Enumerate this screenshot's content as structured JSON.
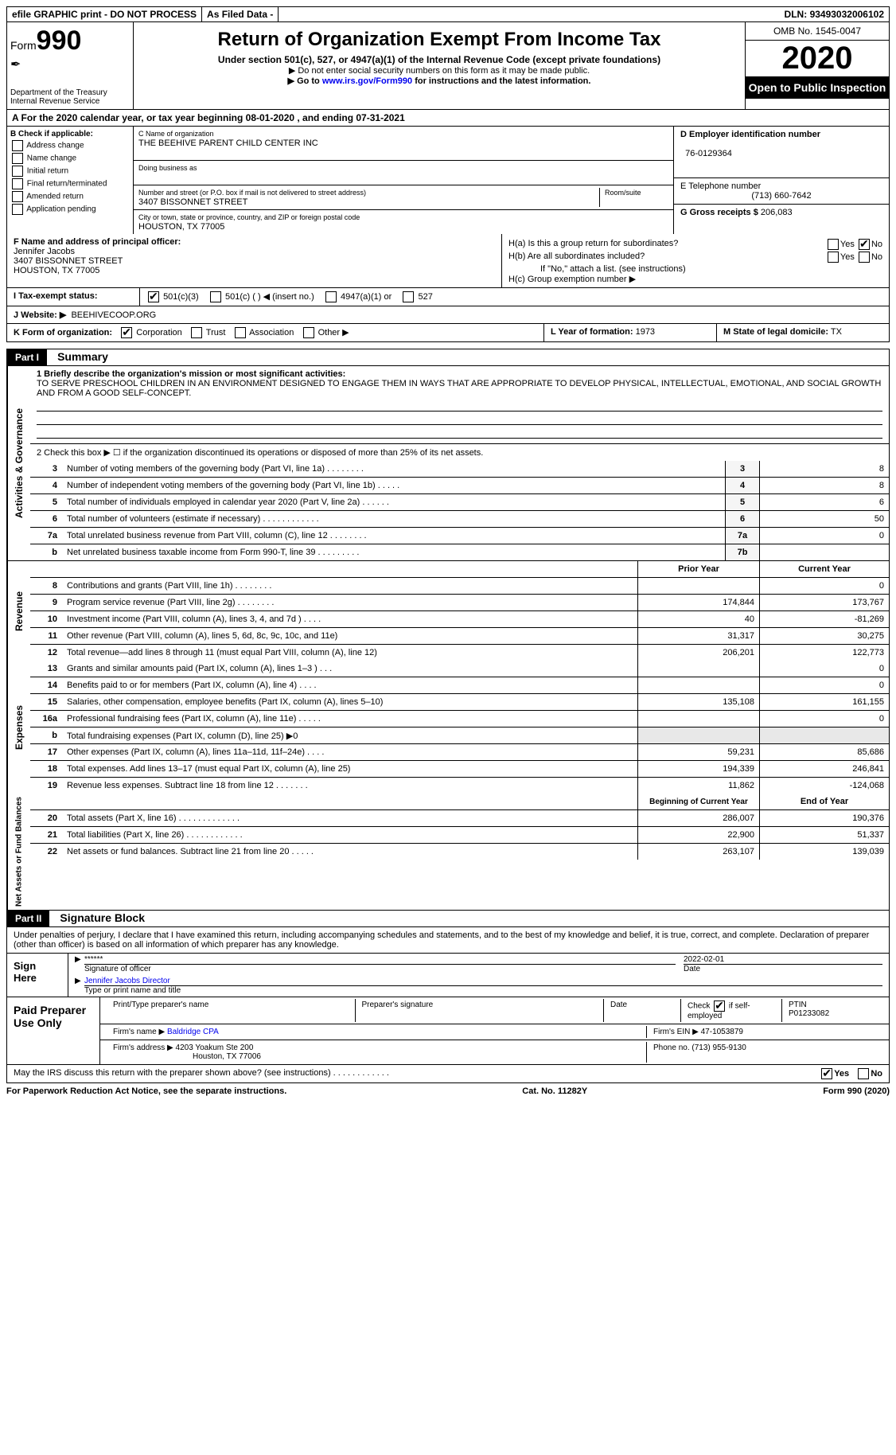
{
  "topbar": {
    "efile": "efile GRAPHIC print - DO NOT PROCESS",
    "asfiled": "As Filed Data -",
    "dln_label": "DLN:",
    "dln": "93493032006102"
  },
  "header": {
    "form_label": "Form",
    "form_num": "990",
    "dept": "Department of the Treasury\nInternal Revenue Service",
    "title": "Return of Organization Exempt From Income Tax",
    "sub": "Under section 501(c), 527, or 4947(a)(1) of the Internal Revenue Code (except private foundations)",
    "note1": "▶ Do not enter social security numbers on this form as it may be made public.",
    "note2_pre": "▶ Go to ",
    "note2_link": "www.irs.gov/Form990",
    "note2_post": " for instructions and the latest information.",
    "omb": "OMB No. 1545-0047",
    "year": "2020",
    "open": "Open to Public Inspection"
  },
  "rowA": "A   For the 2020 calendar year, or tax year beginning 08-01-2020   , and ending 07-31-2021",
  "B": {
    "label": "B Check if applicable:",
    "items": [
      "Address change",
      "Name change",
      "Initial return",
      "Final return/terminated",
      "Amended return",
      "Application pending"
    ]
  },
  "C": {
    "name_label": "C Name of organization",
    "name": "THE BEEHIVE PARENT CHILD CENTER INC",
    "dba_label": "Doing business as",
    "dba": "",
    "street_label": "Number and street (or P.O. box if mail is not delivered to street address)",
    "room_label": "Room/suite",
    "street": "3407 BISSONNET STREET",
    "city_label": "City or town, state or province, country, and ZIP or foreign postal code",
    "city": "HOUSTON, TX  77005"
  },
  "D": {
    "label": "D Employer identification number",
    "val": "76-0129364"
  },
  "E": {
    "label": "E Telephone number",
    "val": "(713) 660-7642"
  },
  "G": {
    "label": "G Gross receipts $",
    "val": "206,083"
  },
  "F": {
    "label": "F  Name and address of principal officer:",
    "name": "Jennifer Jacobs",
    "street": "3407 BISSONNET STREET",
    "city": "HOUSTON, TX  77005"
  },
  "H": {
    "a": "H(a)  Is this a group return for subordinates?",
    "b": "H(b)  Are all subordinates included?",
    "bno": "If \"No,\" attach a list. (see instructions)",
    "c": "H(c)  Group exemption number ▶",
    "yes": "Yes",
    "no": "No"
  },
  "I": {
    "label": "I   Tax-exempt status:",
    "opts": [
      "501(c)(3)",
      "501(c) (   ) ◀ (insert no.)",
      "4947(a)(1) or",
      "527"
    ]
  },
  "J": {
    "label": "J   Website: ▶",
    "val": "BEEHIVECOOP.ORG"
  },
  "K": {
    "label": "K Form of organization:",
    "opts": [
      "Corporation",
      "Trust",
      "Association",
      "Other ▶"
    ]
  },
  "L": {
    "label": "L Year of formation:",
    "val": "1973"
  },
  "M": {
    "label": "M State of legal domicile:",
    "val": "TX"
  },
  "part1": {
    "hdr": "Part I",
    "title": "Summary",
    "line1_label": "1  Briefly describe the organization's mission or most significant activities:",
    "line1_text": "TO SERVE PRESCHOOL CHILDREN IN AN ENVIRONMENT DESIGNED TO ENGAGE THEM IN WAYS THAT ARE APPROPRIATE TO DEVELOP PHYSICAL, INTELLECTUAL, EMOTIONAL, AND SOCIAL GROWTH AND FROM A GOOD SELF-CONCEPT.",
    "line2": "2   Check this box ▶ ☐ if the organization discontinued its operations or disposed of more than 25% of its net assets.",
    "ag_lines": [
      {
        "n": "3",
        "d": "Number of voting members of the governing body (Part VI, line 1a)   .   .   .   .   .   .   .   .",
        "b": "3",
        "v": "8"
      },
      {
        "n": "4",
        "d": "Number of independent voting members of the governing body (Part VI, line 1b)   .   .   .   .   .",
        "b": "4",
        "v": "8"
      },
      {
        "n": "5",
        "d": "Total number of individuals employed in calendar year 2020 (Part V, line 2a)   .   .   .   .   .   .",
        "b": "5",
        "v": "6"
      },
      {
        "n": "6",
        "d": "Total number of volunteers (estimate if necessary)   .   .   .   .   .   .   .   .   .   .   .   .",
        "b": "6",
        "v": "50"
      },
      {
        "n": "7a",
        "d": "Total unrelated business revenue from Part VIII, column (C), line 12   .   .   .   .   .   .   .   .",
        "b": "7a",
        "v": "0"
      },
      {
        "n": "b",
        "d": "Net unrelated business taxable income from Form 990-T, line 39   .   .   .   .   .   .   .   .   .",
        "b": "7b",
        "v": ""
      }
    ],
    "col_prior": "Prior Year",
    "col_current": "Current Year",
    "rev_lines": [
      {
        "n": "8",
        "d": "Contributions and grants (Part VIII, line 1h)   .   .   .   .   .   .   .   .",
        "p": "",
        "c": "0"
      },
      {
        "n": "9",
        "d": "Program service revenue (Part VIII, line 2g)   .   .   .   .   .   .   .   .",
        "p": "174,844",
        "c": "173,767"
      },
      {
        "n": "10",
        "d": "Investment income (Part VIII, column (A), lines 3, 4, and 7d )   .   .   .   .",
        "p": "40",
        "c": "-81,269"
      },
      {
        "n": "11",
        "d": "Other revenue (Part VIII, column (A), lines 5, 6d, 8c, 9c, 10c, and 11e)",
        "p": "31,317",
        "c": "30,275"
      },
      {
        "n": "12",
        "d": "Total revenue—add lines 8 through 11 (must equal Part VIII, column (A), line 12)",
        "p": "206,201",
        "c": "122,773"
      }
    ],
    "exp_lines": [
      {
        "n": "13",
        "d": "Grants and similar amounts paid (Part IX, column (A), lines 1–3 )   .   .   .",
        "p": "",
        "c": "0"
      },
      {
        "n": "14",
        "d": "Benefits paid to or for members (Part IX, column (A), line 4)   .   .   .   .",
        "p": "",
        "c": "0"
      },
      {
        "n": "15",
        "d": "Salaries, other compensation, employee benefits (Part IX, column (A), lines 5–10)",
        "p": "135,108",
        "c": "161,155"
      },
      {
        "n": "16a",
        "d": "Professional fundraising fees (Part IX, column (A), line 11e)   .   .   .   .   .",
        "p": "",
        "c": "0"
      },
      {
        "n": "b",
        "d": "Total fundraising expenses (Part IX, column (D), line 25) ▶0",
        "p": "",
        "c": "",
        "shade": true
      },
      {
        "n": "17",
        "d": "Other expenses (Part IX, column (A), lines 11a–11d, 11f–24e)   .   .   .   .",
        "p": "59,231",
        "c": "85,686"
      },
      {
        "n": "18",
        "d": "Total expenses. Add lines 13–17 (must equal Part IX, column (A), line 25)",
        "p": "194,339",
        "c": "246,841"
      },
      {
        "n": "19",
        "d": "Revenue less expenses. Subtract line 18 from line 12   .   .   .   .   .   .   .",
        "p": "11,862",
        "c": "-124,068"
      }
    ],
    "col_begin": "Beginning of Current Year",
    "col_end": "End of Year",
    "na_lines": [
      {
        "n": "20",
        "d": "Total assets (Part X, line 16)   .   .   .   .   .   .   .   .   .   .   .   .   .",
        "p": "286,007",
        "c": "190,376"
      },
      {
        "n": "21",
        "d": "Total liabilities (Part X, line 26)   .   .   .   .   .   .   .   .   .   .   .   .",
        "p": "22,900",
        "c": "51,337"
      },
      {
        "n": "22",
        "d": "Net assets or fund balances. Subtract line 21 from line 20   .   .   .   .   .",
        "p": "263,107",
        "c": "139,039"
      }
    ],
    "side_ag": "Activities & Governance",
    "side_rev": "Revenue",
    "side_exp": "Expenses",
    "side_na": "Net Assets or Fund Balances"
  },
  "part2": {
    "hdr": "Part II",
    "title": "Signature Block",
    "perjury": "Under penalties of perjury, I declare that I have examined this return, including accompanying schedules and statements, and to the best of my knowledge and belief, it is true, correct, and complete. Declaration of preparer (other than officer) is based on all information of which preparer has any knowledge."
  },
  "sign": {
    "here": "Sign Here",
    "stars": "******",
    "sig_officer": "Signature of officer",
    "date": "2022-02-01",
    "date_label": "Date",
    "name": "Jennifer Jacobs  Director",
    "name_label": "Type or print name and title"
  },
  "paid": {
    "label": "Paid Preparer Use Only",
    "col1": "Print/Type preparer's name",
    "col2": "Preparer's signature",
    "col3": "Date",
    "col4a": "Check ☑ if self-employed",
    "col5_label": "PTIN",
    "col5": "P01233082",
    "firm_name_label": "Firm's name   ▶",
    "firm_name": "Baldridge CPA",
    "firm_ein_label": "Firm's EIN ▶",
    "firm_ein": "47-1053879",
    "firm_addr_label": "Firm's address ▶",
    "firm_addr1": "4203 Yoakum Ste 200",
    "firm_addr2": "Houston, TX  77006",
    "phone_label": "Phone no.",
    "phone": "(713) 955-9130"
  },
  "discuss": {
    "q": "May the IRS discuss this return with the preparer shown above? (see instructions)   .   .   .   .   .   .   .   .   .   .   .   .",
    "yes": "Yes",
    "no": "No"
  },
  "footer": {
    "left": "For Paperwork Reduction Act Notice, see the separate instructions.",
    "mid": "Cat. No. 11282Y",
    "right": "Form 990 (2020)"
  }
}
